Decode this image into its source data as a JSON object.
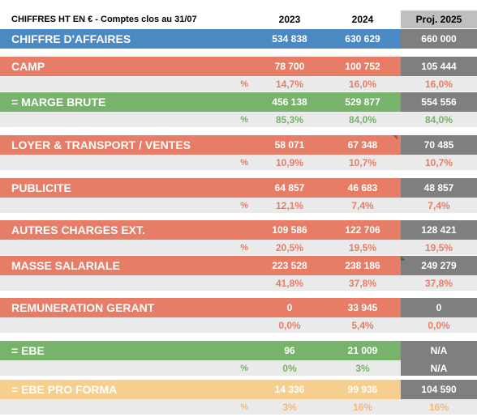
{
  "header": {
    "title": "CHIFFRES HT EN € - Comptes clos au 31/07",
    "col_2023": "2023",
    "col_2024": "2024",
    "col_proj": "Proj. 2025"
  },
  "rows": {
    "ca": {
      "label": "CHIFFRE D'AFFAIRES",
      "v2023": "534 838",
      "v2024": "630 629",
      "proj": "660 000"
    },
    "camp": {
      "label": "CAMP",
      "v2023": "78 700",
      "v2024": "100 752",
      "proj": "105 444"
    },
    "camp_pct": {
      "symbol": "%",
      "v2023": "14,7%",
      "v2024": "16,0%",
      "proj": "16,0%"
    },
    "marge": {
      "label": "= MARGE BRUTE",
      "v2023": "456 138",
      "v2024": "529 877",
      "proj": "554 556"
    },
    "marge_pct": {
      "symbol": "%",
      "v2023": "85,3%",
      "v2024": "84,0%",
      "proj": "84,0%"
    },
    "loyer": {
      "label": "LOYER & TRANSPORT / VENTES",
      "v2023": "58 071",
      "v2024": "67 348",
      "proj": "70 485"
    },
    "loyer_pct": {
      "symbol": "%",
      "v2023": "10,9%",
      "v2024": "10,7%",
      "proj": "10,7%"
    },
    "pub": {
      "label": "PUBLICITE",
      "v2023": "64 857",
      "v2024": "46 683",
      "proj": "48 857"
    },
    "pub_pct": {
      "symbol": "%",
      "v2023": "12,1%",
      "v2024": "7,4%",
      "proj": "7,4%"
    },
    "autres": {
      "label": "AUTRES CHARGES EXT.",
      "v2023": "109 586",
      "v2024": "122 706",
      "proj": "128 421"
    },
    "autres_pct": {
      "symbol": "%",
      "v2023": "20,5%",
      "v2024": "19,5%",
      "proj": "19,5%"
    },
    "masse": {
      "label": "MASSE SALARIALE",
      "v2023": "223 528",
      "v2024": "238 186",
      "proj": "249 279"
    },
    "masse_pct": {
      "symbol": "",
      "v2023": "41,8%",
      "v2024": "37,8%",
      "proj": "37,8%"
    },
    "remu": {
      "label": "REMUNERATION GERANT",
      "v2023": "0",
      "v2024": "33 945",
      "proj": "0"
    },
    "remu_pct": {
      "symbol": "",
      "v2023": "0,0%",
      "v2024": "5,4%",
      "proj": "0,0%"
    },
    "ebe": {
      "label": "= EBE",
      "v2023": "96",
      "v2024": "21 009",
      "proj": "N/A"
    },
    "ebe_pct": {
      "symbol": "%",
      "v2023": "0%",
      "v2024": "3%",
      "proj": "N/A"
    },
    "ebepf": {
      "label": "= EBE PRO FORMA",
      "v2023": "14 336",
      "v2024": "99 936",
      "proj": "104 590"
    },
    "ebepf_pct": {
      "symbol": "%",
      "v2023": "3%",
      "v2024": "16%",
      "proj": "16%"
    }
  },
  "colors": {
    "blue": "#4a89c3",
    "red": "#e77d66",
    "green": "#77b36a",
    "yellow": "#f6cf8f",
    "grey_proj": "#7f7f7f"
  }
}
